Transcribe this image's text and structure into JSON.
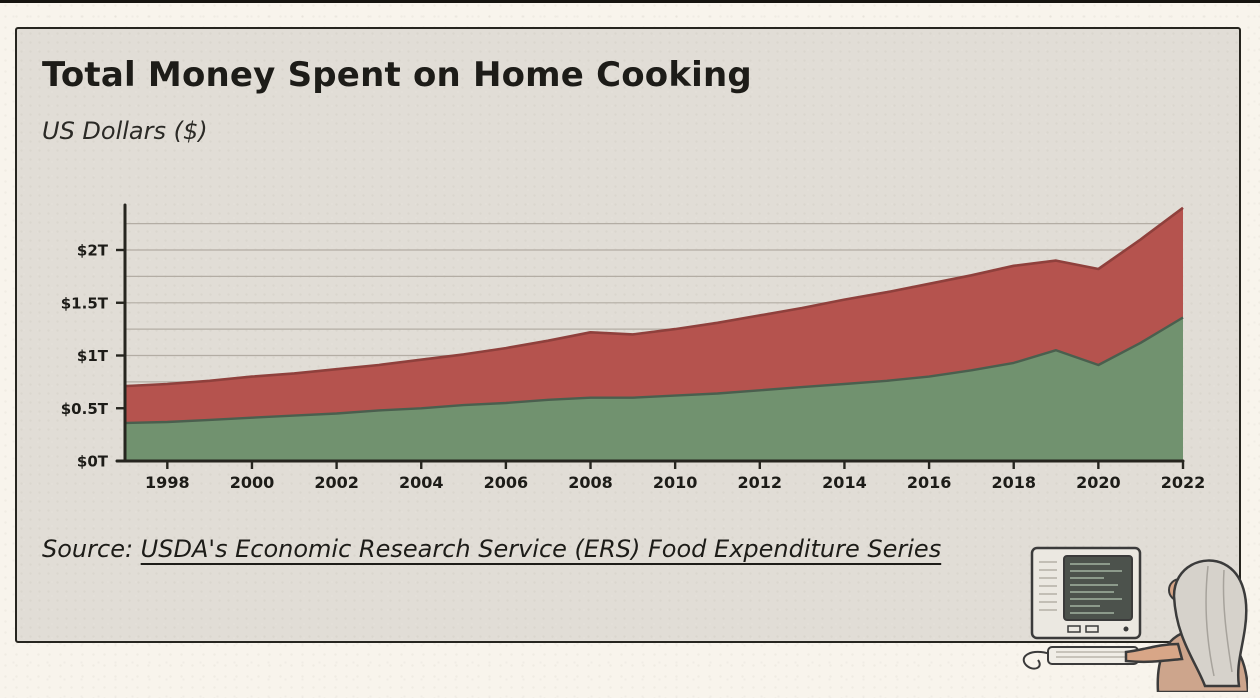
{
  "header": {
    "title": "Total Money Spent on Home Cooking",
    "subtitle": "US Dollars ($)"
  },
  "source": {
    "prefix": "Source: ",
    "link_text": "USDA's Economic Research Service (ERS) Food Expenditure Series"
  },
  "colors": {
    "background_outer": "#f8f4ec",
    "background_poster": "#e1ddd6",
    "frame_border": "#26251f",
    "green_area": "#71926f",
    "red_area": "#b5534e",
    "gridline": "#b3ada4",
    "text": "#1d1c18"
  },
  "illustration": {
    "name": "person-using-old-computer",
    "description": "hand-drawn elderly person with gray hair typing on a beige retro computer, bottom right corner"
  },
  "chart_data": {
    "type": "area",
    "stacked": true,
    "title": "Total Money Spent on Home Cooking",
    "ylabel": "US Dollars ($)",
    "xlabel": "",
    "legend": "none",
    "grid": {
      "step": 0.25,
      "max": 2.25
    },
    "ylim": [
      0,
      2.43
    ],
    "x": [
      1997,
      1998,
      1999,
      2000,
      2001,
      2002,
      2003,
      2004,
      2005,
      2006,
      2007,
      2008,
      2009,
      2010,
      2011,
      2012,
      2013,
      2014,
      2015,
      2016,
      2017,
      2018,
      2019,
      2020,
      2021,
      2022
    ],
    "series": [
      {
        "name": "Lower layer (green area)",
        "color": "#71926f",
        "line_color": "#4a5f4e",
        "values": [
          0.36,
          0.37,
          0.39,
          0.41,
          0.43,
          0.45,
          0.48,
          0.5,
          0.53,
          0.55,
          0.58,
          0.6,
          0.6,
          0.62,
          0.64,
          0.67,
          0.7,
          0.73,
          0.76,
          0.8,
          0.86,
          0.93,
          1.05,
          0.91,
          1.12,
          1.36
        ]
      },
      {
        "name": "Upper layer (red area, cumulative total)",
        "color": "#b5534e",
        "line_color": "#8f403c",
        "stacked_totals": [
          0.71,
          0.73,
          0.76,
          0.8,
          0.83,
          0.87,
          0.91,
          0.96,
          1.01,
          1.07,
          1.14,
          1.22,
          1.2,
          1.25,
          1.31,
          1.38,
          1.45,
          1.53,
          1.6,
          1.68,
          1.76,
          1.85,
          1.9,
          1.82,
          2.1,
          2.4
        ]
      }
    ],
    "x_tick_labels": [
      "1998",
      "2000",
      "2002",
      "2004",
      "2006",
      "2008",
      "2010",
      "2012",
      "2014",
      "2016",
      "2018",
      "2020",
      "2022"
    ],
    "y_ticks": [
      {
        "label": "$0T",
        "value": 0
      },
      {
        "label": "$0.5T",
        "value": 0.5
      },
      {
        "label": "$1T",
        "value": 1
      },
      {
        "label": "$1.5T",
        "value": 1.5
      },
      {
        "label": "$2T",
        "value": 2
      }
    ]
  }
}
